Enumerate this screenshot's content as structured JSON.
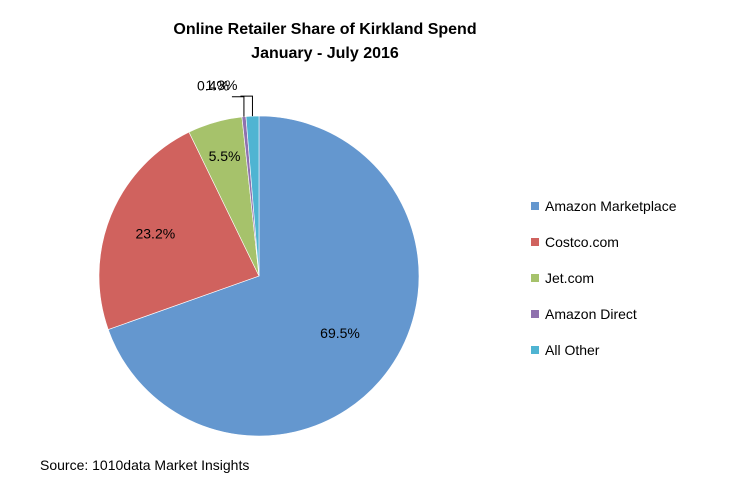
{
  "title_line1": "Online Retailer Share of Kirkland Spend",
  "title_line2": "January - July 2016",
  "source": "Source: 1010data Market Insights",
  "chart_data": {
    "type": "pie",
    "title": "Online Retailer Share of Kirkland Spend",
    "subtitle": "January - July 2016",
    "legend_position": "right",
    "slices": [
      {
        "name": "Amazon Marketplace",
        "value": 69.5,
        "label": "69.5%",
        "color": "#6497CF"
      },
      {
        "name": "Costco.com",
        "value": 23.2,
        "label": "23.2%",
        "color": "#D0625E"
      },
      {
        "name": "Jet.com",
        "value": 5.5,
        "label": "5.5%",
        "color": "#A6C26B"
      },
      {
        "name": "Amazon Direct",
        "value": 0.4,
        "label": "0.4%",
        "color": "#8F71AE"
      },
      {
        "name": "All Other",
        "value": 1.3,
        "label": "1.3%",
        "color": "#4FB4D2"
      }
    ]
  }
}
